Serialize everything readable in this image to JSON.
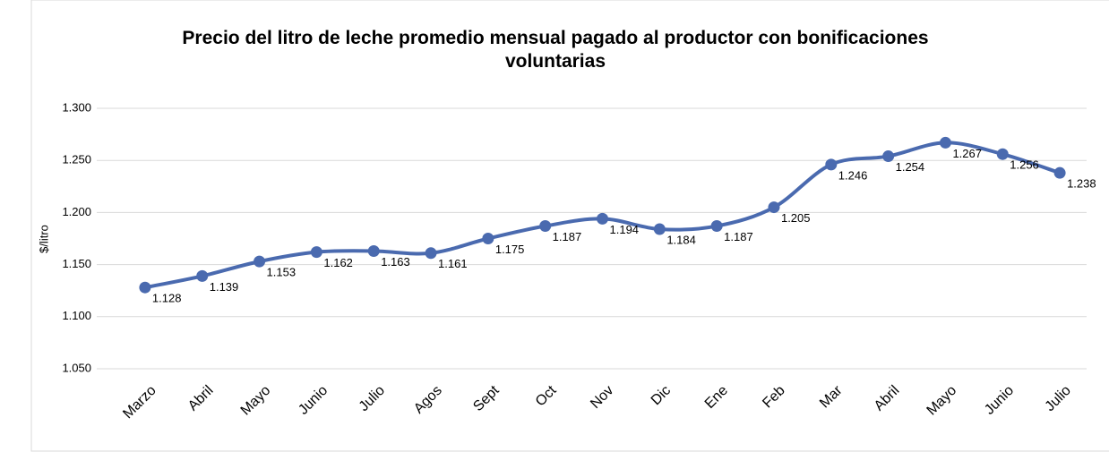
{
  "chart_data": {
    "type": "line",
    "title": "Precio del litro de leche promedio mensual pagado al productor con bonificaciones voluntarias",
    "y_label": "$/litro",
    "categories": [
      "Marzo",
      "Abril",
      "Mayo",
      "Junio",
      "Julio",
      "Agos",
      "Sept",
      "Oct",
      "Nov",
      "Dic",
      "Ene",
      "Feb",
      "Mar",
      "Abril",
      "Mayo",
      "Junio",
      "Julio"
    ],
    "values": [
      1.128,
      1.139,
      1.153,
      1.162,
      1.163,
      1.161,
      1.175,
      1.187,
      1.194,
      1.184,
      1.187,
      1.205,
      1.246,
      1.254,
      1.267,
      1.256,
      1.238
    ],
    "color": "#4a6aaf",
    "ylim": [
      1.05,
      1.3
    ],
    "yticks": [
      {
        "value": 1.05,
        "label": "1.050"
      },
      {
        "value": 1.1,
        "label": "1.100"
      },
      {
        "value": 1.15,
        "label": "1.150"
      },
      {
        "value": 1.2,
        "label": "1.200"
      },
      {
        "value": 1.25,
        "label": "1.250"
      },
      {
        "value": 1.3,
        "label": "1.300"
      }
    ],
    "grid": true,
    "smooth": true
  }
}
